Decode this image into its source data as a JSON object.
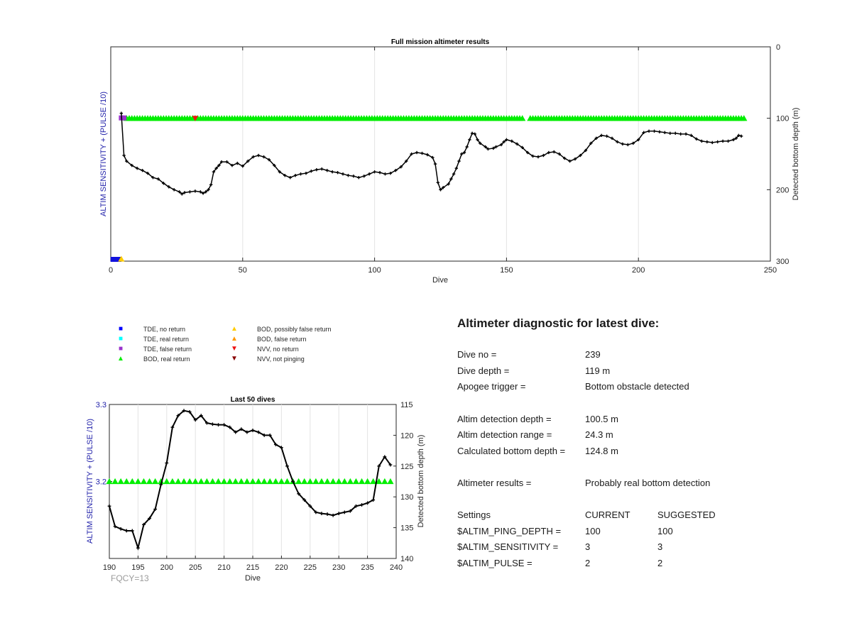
{
  "main_chart": {
    "title": "Full mission altimeter results",
    "xlabel": "Dive",
    "ylabel_left": "ALTIM SENSITIVITY + (PULSE /10)",
    "ylabel_right": "Detected bottom depth (m)",
    "x_ticks": [
      "0",
      "50",
      "100",
      "150",
      "200",
      "250"
    ],
    "y_right_ticks": [
      "0",
      "100",
      "200",
      "300"
    ]
  },
  "small_chart": {
    "title": "Last 50 dives",
    "xlabel": "Dive",
    "ylabel_left": "ALTIM SENSITIVITY + (PULSE /10)",
    "ylabel_right": "Detected bottom depth (m)",
    "x_ticks": [
      "190",
      "195",
      "200",
      "205",
      "210",
      "215",
      "220",
      "225",
      "230",
      "235",
      "240"
    ],
    "y_left_ticks": [
      "3.3",
      "3.2"
    ],
    "y_right_ticks": [
      "115",
      "120",
      "125",
      "130",
      "135",
      "140"
    ]
  },
  "legend": [
    {
      "label": "TDE, no return",
      "symbol": "square",
      "color": "#0000ff"
    },
    {
      "label": "TDE, real return",
      "symbol": "square",
      "color": "#00ffff"
    },
    {
      "label": "TDE, false return",
      "symbol": "square",
      "color": "#9933cc"
    },
    {
      "label": "BOD, real return",
      "symbol": "triangle-up",
      "color": "#00ee00"
    },
    {
      "label": "BOD, possibly false return",
      "symbol": "triangle-up",
      "color": "#ffcc00"
    },
    {
      "label": "BOD, false return",
      "symbol": "triangle-up",
      "color": "#ff9900"
    },
    {
      "label": "NVV, no return",
      "symbol": "triangle-down",
      "color": "#ee1111"
    },
    {
      "label": "NVV, not pinging",
      "symbol": "triangle-down",
      "color": "#880000"
    }
  ],
  "fqcy": "FQCY=13",
  "diagnostic": {
    "title": "Altimeter diagnostic for latest dive:",
    "rows": [
      {
        "key": "Dive no =",
        "value": "239"
      },
      {
        "key": "Dive depth =",
        "value": "119 m"
      },
      {
        "key": "Apogee trigger =",
        "value": "Bottom obstacle detected"
      },
      {
        "key": "Altim detection depth =",
        "value": "100.5 m"
      },
      {
        "key": "Altim detection range =",
        "value": "24.3 m"
      },
      {
        "key": "Calculated bottom depth =",
        "value": "124.8 m"
      },
      {
        "key": "Altimeter results =",
        "value": "Probably real bottom detection"
      }
    ],
    "settings_header": {
      "key": "Settings",
      "current": "CURRENT",
      "suggested": "SUGGESTED"
    },
    "settings": [
      {
        "key": "$ALTIM_PING_DEPTH =",
        "current": "100",
        "suggested": "100"
      },
      {
        "key": "$ALTIM_SENSITIVITY =",
        "current": "3",
        "suggested": "3"
      },
      {
        "key": "$ALTIM_PULSE =",
        "current": "2",
        "suggested": "2"
      }
    ]
  },
  "chart_data": [
    {
      "type": "line",
      "title": "Full mission altimeter results",
      "xlabel": "Dive",
      "ylabel": "Detected bottom depth (m)",
      "xlim": [
        0,
        250
      ],
      "ylim": [
        300,
        0
      ],
      "grid": "x-only",
      "series": [
        {
          "color": "#000000",
          "points": [
            [
              4,
              93
            ],
            [
              5,
              152
            ],
            [
              6,
              160
            ],
            [
              8,
              166
            ],
            [
              10,
              170
            ],
            [
              12,
              173
            ],
            [
              14,
              177
            ],
            [
              16,
              183
            ],
            [
              18,
              185
            ],
            [
              20,
              191
            ],
            [
              22,
              196
            ],
            [
              24,
              200
            ],
            [
              26,
              203
            ],
            [
              27,
              206
            ],
            [
              28,
              204
            ],
            [
              30,
              203
            ],
            [
              32,
              202
            ],
            [
              34,
              203
            ],
            [
              35,
              205
            ],
            [
              36,
              203
            ],
            [
              37,
              200
            ],
            [
              38,
              193
            ],
            [
              39,
              175
            ],
            [
              40,
              170
            ],
            [
              41,
              166
            ],
            [
              42,
              161
            ],
            [
              44,
              161
            ],
            [
              46,
              166
            ],
            [
              48,
              163
            ],
            [
              50,
              167
            ],
            [
              52,
              160
            ],
            [
              54,
              154
            ],
            [
              56,
              152
            ],
            [
              58,
              154
            ],
            [
              60,
              158
            ],
            [
              62,
              166
            ],
            [
              64,
              175
            ],
            [
              66,
              180
            ],
            [
              68,
              183
            ],
            [
              70,
              180
            ],
            [
              72,
              178
            ],
            [
              74,
              177
            ],
            [
              76,
              174
            ],
            [
              78,
              172
            ],
            [
              80,
              171
            ],
            [
              82,
              173
            ],
            [
              84,
              175
            ],
            [
              86,
              176
            ],
            [
              88,
              178
            ],
            [
              90,
              180
            ],
            [
              92,
              181
            ],
            [
              94,
              183
            ],
            [
              96,
              181
            ],
            [
              98,
              178
            ],
            [
              100,
              175
            ],
            [
              102,
              176
            ],
            [
              104,
              178
            ],
            [
              106,
              177
            ],
            [
              108,
              173
            ],
            [
              110,
              168
            ],
            [
              112,
              160
            ],
            [
              114,
              150
            ],
            [
              116,
              148
            ],
            [
              118,
              149
            ],
            [
              120,
              151
            ],
            [
              122,
              155
            ],
            [
              123,
              164
            ],
            [
              124,
              190
            ],
            [
              125,
              200
            ],
            [
              126,
              197
            ],
            [
              128,
              192
            ],
            [
              129,
              185
            ],
            [
              130,
              178
            ],
            [
              131,
              170
            ],
            [
              132,
              160
            ],
            [
              133,
              150
            ],
            [
              134,
              148
            ],
            [
              135,
              140
            ],
            [
              136,
              130
            ],
            [
              137,
              121
            ],
            [
              138,
              122
            ],
            [
              139,
              130
            ],
            [
              140,
              135
            ],
            [
              142,
              140
            ],
            [
              143,
              143
            ],
            [
              145,
              142
            ],
            [
              146,
              140
            ],
            [
              148,
              137
            ],
            [
              149,
              133
            ],
            [
              150,
              130
            ],
            [
              152,
              132
            ],
            [
              154,
              136
            ],
            [
              156,
              141
            ],
            [
              158,
              148
            ],
            [
              160,
              153
            ],
            [
              162,
              154
            ],
            [
              164,
              152
            ],
            [
              166,
              148
            ],
            [
              168,
              147
            ],
            [
              170,
              150
            ],
            [
              172,
              156
            ],
            [
              174,
              160
            ],
            [
              176,
              157
            ],
            [
              178,
              152
            ],
            [
              180,
              145
            ],
            [
              182,
              135
            ],
            [
              184,
              128
            ],
            [
              186,
              124
            ],
            [
              188,
              125
            ],
            [
              190,
              128
            ],
            [
              192,
              133
            ],
            [
              194,
              136
            ],
            [
              196,
              137
            ],
            [
              198,
              135
            ],
            [
              200,
              130
            ],
            [
              202,
              120
            ],
            [
              204,
              118
            ],
            [
              206,
              118
            ],
            [
              208,
              119
            ],
            [
              210,
              120
            ],
            [
              212,
              121
            ],
            [
              214,
              121
            ],
            [
              216,
              122
            ],
            [
              218,
              122
            ],
            [
              220,
              124
            ],
            [
              222,
              129
            ],
            [
              224,
              132
            ],
            [
              226,
              133
            ],
            [
              228,
              134
            ],
            [
              230,
              133
            ],
            [
              232,
              132
            ],
            [
              234,
              132
            ],
            [
              236,
              130
            ],
            [
              237,
              128
            ],
            [
              238,
              124
            ],
            [
              239,
              125
            ]
          ]
        }
      ],
      "markers": [
        {
          "label": "TDE, no return",
          "dives": [
            1,
            2,
            3
          ]
        },
        {
          "label": "TDE, false return",
          "dives": [
            4,
            5
          ]
        },
        {
          "label": "BOD, possibly false return",
          "dives": [
            4
          ]
        },
        {
          "label": "NVV, no return",
          "dives": [
            32
          ]
        },
        {
          "label": "BOD, real return",
          "dive_range": [
            6,
            240
          ],
          "gaps": [
            157,
            158
          ]
        }
      ]
    },
    {
      "type": "line",
      "title": "Last 50 dives",
      "xlabel": "Dive",
      "ylabel": "Detected bottom depth (m)",
      "xlim": [
        190,
        240
      ],
      "ylim": [
        140,
        115
      ],
      "y_left_lim": [
        3.1,
        3.3
      ],
      "grid": "x-only",
      "series": [
        {
          "color": "#000000",
          "points": [
            [
              190,
              131.5
            ],
            [
              191,
              134.8
            ],
            [
              192,
              135.2
            ],
            [
              193,
              135.5
            ],
            [
              194,
              135.5
            ],
            [
              195,
              138.3
            ],
            [
              196,
              134.5
            ],
            [
              197,
              133.5
            ],
            [
              198,
              132
            ],
            [
              199,
              128
            ],
            [
              200,
              124.5
            ],
            [
              201,
              118.7
            ],
            [
              202,
              116.8
            ],
            [
              203,
              116
            ],
            [
              204,
              116.2
            ],
            [
              205,
              117.5
            ],
            [
              206,
              116.8
            ],
            [
              207,
              118
            ],
            [
              208,
              118.2
            ],
            [
              209,
              118.3
            ],
            [
              210,
              118.3
            ],
            [
              211,
              118.7
            ],
            [
              212,
              119.5
            ],
            [
              213,
              119
            ],
            [
              214,
              119.5
            ],
            [
              215,
              119.2
            ],
            [
              216,
              119.5
            ],
            [
              217,
              120
            ],
            [
              218,
              120
            ],
            [
              219,
              121.5
            ],
            [
              220,
              122
            ],
            [
              221,
              125
            ],
            [
              222,
              127.5
            ],
            [
              223,
              129.5
            ],
            [
              224,
              130.5
            ],
            [
              225,
              131.5
            ],
            [
              226,
              132.5
            ],
            [
              227,
              132.7
            ],
            [
              228,
              132.8
            ],
            [
              229,
              133
            ],
            [
              230,
              132.7
            ],
            [
              231,
              132.5
            ],
            [
              232,
              132.3
            ],
            [
              233,
              131.5
            ],
            [
              234,
              131.3
            ],
            [
              235,
              131
            ],
            [
              236,
              130.5
            ],
            [
              237,
              125
            ],
            [
              238,
              123.5
            ],
            [
              239,
              124.8
            ]
          ]
        }
      ],
      "markers": [
        {
          "label": "BOD, real return",
          "dive_range": [
            190,
            239
          ],
          "y_left": 3.2
        }
      ]
    }
  ]
}
